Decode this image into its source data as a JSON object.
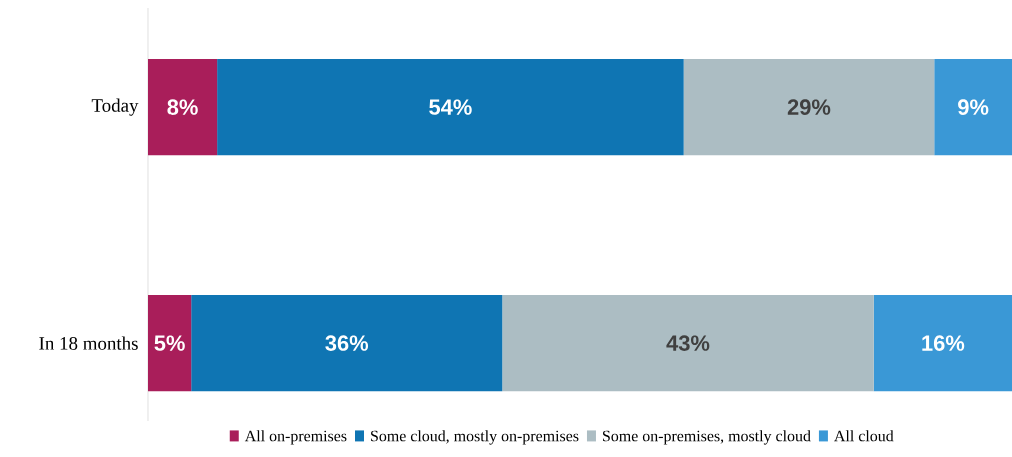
{
  "chart_data": {
    "type": "bar",
    "orientation": "horizontal",
    "stacked": true,
    "categories": [
      "Today",
      "In 18 months"
    ],
    "series": [
      {
        "name": "All on-premises",
        "color": "#a91e5a",
        "values": [
          8,
          5
        ],
        "value_labels": [
          "8%",
          "5%"
        ]
      },
      {
        "name": "Some cloud, mostly on-premises",
        "color": "#0f75b3",
        "values": [
          54,
          36
        ],
        "value_labels": [
          "54%",
          "36%"
        ]
      },
      {
        "name": "Some on-premises, mostly cloud",
        "color": "#acbdc3",
        "values": [
          29,
          43
        ],
        "value_labels": [
          "29%",
          "43%"
        ]
      },
      {
        "name": "All cloud",
        "color": "#3a98d6",
        "values": [
          9,
          16
        ],
        "value_labels": [
          "9%",
          "16%"
        ]
      }
    ],
    "xlim": [
      0,
      100
    ],
    "tick_labels": "y",
    "legend": "bottom"
  }
}
